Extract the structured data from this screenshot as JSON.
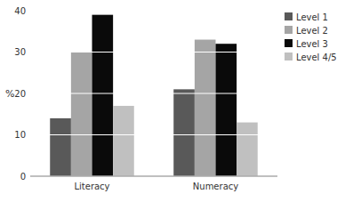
{
  "chart_data": {
    "type": "bar",
    "categories": [
      "Literacy",
      "Numeracy"
    ],
    "series": [
      {
        "name": "Level 1",
        "color": "#595959",
        "values": [
          14,
          21
        ]
      },
      {
        "name": "Level 2",
        "color": "#a5a5a5",
        "values": [
          30,
          33
        ]
      },
      {
        "name": "Level 3",
        "color": "#0a0a0a",
        "values": [
          39,
          32
        ]
      },
      {
        "name": "Level 4/5",
        "color": "#c0c0c0",
        "values": [
          17,
          13
        ]
      }
    ],
    "y_label": "%",
    "ylim": [
      0,
      40
    ],
    "yticks": [
      0,
      10,
      20,
      30,
      40
    ],
    "grid": true,
    "legend": "upper right"
  }
}
